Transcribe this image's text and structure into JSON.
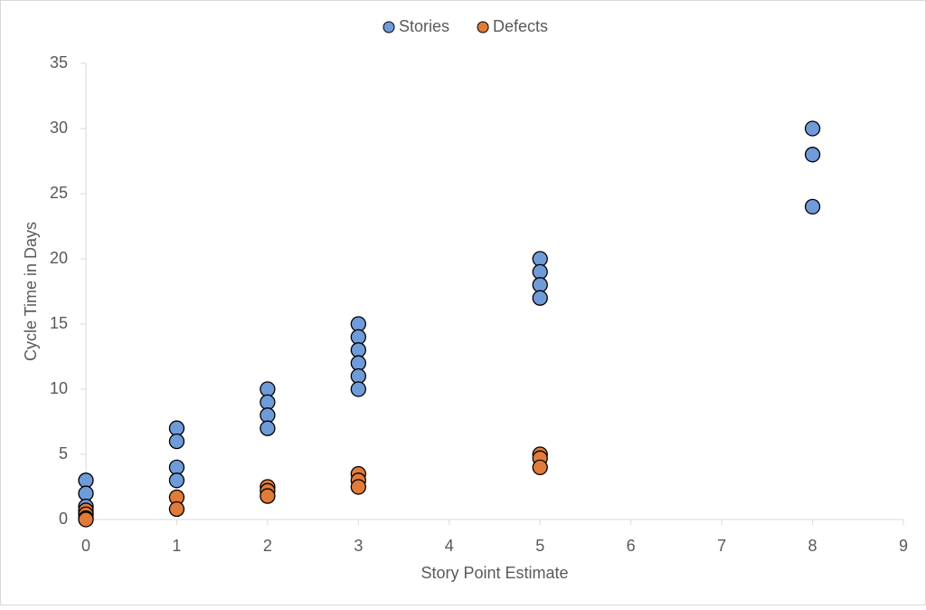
{
  "chart_data": {
    "type": "scatter",
    "xlabel": "Story Point Estimate",
    "ylabel": "Cycle Time in Days",
    "xlim": [
      0,
      9
    ],
    "xticks": [
      0,
      1,
      2,
      3,
      4,
      5,
      6,
      7,
      8,
      9
    ],
    "ylim": [
      0,
      35
    ],
    "yticks": [
      0,
      5,
      10,
      15,
      20,
      25,
      30,
      35
    ],
    "grid": false,
    "legend": "top",
    "series": [
      {
        "name": "Stories",
        "color": "#6f9bd8",
        "x": [
          0,
          0,
          0,
          0,
          1,
          1,
          1,
          1,
          2,
          2,
          2,
          2,
          3,
          3,
          3,
          3,
          3,
          3,
          5,
          5,
          5,
          5,
          8,
          8,
          8
        ],
        "values": [
          3,
          2,
          1,
          0.5,
          7,
          6,
          4,
          3,
          10,
          9,
          8,
          7,
          15,
          14,
          13,
          12,
          11,
          10,
          20,
          19,
          18,
          17,
          30,
          28,
          24
        ]
      },
      {
        "name": "Defects",
        "color": "#e07b39",
        "x": [
          0,
          0,
          0,
          0,
          1,
          1,
          2,
          2,
          2,
          3,
          3,
          3,
          5,
          5,
          5
        ],
        "values": [
          0.7,
          0.4,
          0.1,
          0,
          1.7,
          0.8,
          2.5,
          2.2,
          1.8,
          3.5,
          3,
          2.5,
          5,
          4.7,
          4
        ]
      }
    ]
  }
}
